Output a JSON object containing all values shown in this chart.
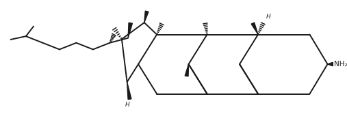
{
  "background_color": "#ffffff",
  "line_color": "#1a1a1a",
  "line_width": 1.4,
  "figsize": [
    5.07,
    1.89
  ],
  "dpi": 100,
  "nh2_label": "NH₂",
  "h_label": "H"
}
